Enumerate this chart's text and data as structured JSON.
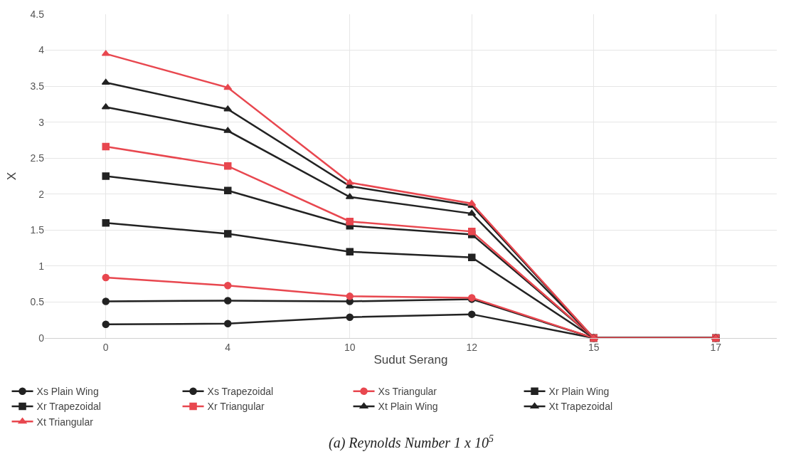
{
  "chart_data": {
    "type": "line",
    "xlabel": "Sudut Serang",
    "ylabel": "X",
    "categories": [
      "0",
      "4",
      "10",
      "12",
      "15",
      "17"
    ],
    "ylim": [
      0,
      4.5
    ],
    "yticks": [
      0,
      0.5,
      1,
      1.5,
      2,
      2.5,
      3,
      3.5,
      4,
      4.5
    ],
    "grid": true,
    "legend": "bottom",
    "annotations": [
      "(a) Reynolds Number 1 x 10$^{5}$"
    ],
    "series": [
      {
        "name": "Xs Plain Wing",
        "color": "#222222",
        "marker": "circle",
        "values": [
          0.19,
          0.2,
          0.29,
          0.33,
          0,
          0
        ]
      },
      {
        "name": "Xs Trapezoidal",
        "color": "#222222",
        "marker": "circle",
        "values": [
          0.51,
          0.52,
          0.51,
          0.54,
          0,
          0
        ]
      },
      {
        "name": "Xs Triangular",
        "color": "#e8474f",
        "marker": "circle",
        "values": [
          0.84,
          0.73,
          0.58,
          0.56,
          0,
          0
        ]
      },
      {
        "name": "Xr Plain Wing",
        "color": "#222222",
        "marker": "square",
        "values": [
          1.6,
          1.45,
          1.2,
          1.12,
          0,
          0
        ]
      },
      {
        "name": "Xr Trapezoidal",
        "color": "#222222",
        "marker": "square",
        "values": [
          2.25,
          2.05,
          1.56,
          1.44,
          0,
          0
        ]
      },
      {
        "name": "Xr Triangular",
        "color": "#e8474f",
        "marker": "square",
        "values": [
          2.66,
          2.39,
          1.62,
          1.48,
          0,
          0
        ]
      },
      {
        "name": "Xt Plain Wing",
        "color": "#222222",
        "marker": "triangle",
        "values": [
          3.21,
          2.88,
          1.96,
          1.73,
          0,
          0
        ]
      },
      {
        "name": "Xt Trapezoidal",
        "color": "#222222",
        "marker": "triangle",
        "values": [
          3.55,
          3.18,
          2.11,
          1.84,
          0,
          0
        ]
      },
      {
        "name": "Xt Triangular",
        "color": "#e8474f",
        "marker": "triangle",
        "values": [
          3.95,
          3.48,
          2.16,
          1.87,
          0,
          0
        ]
      }
    ]
  }
}
